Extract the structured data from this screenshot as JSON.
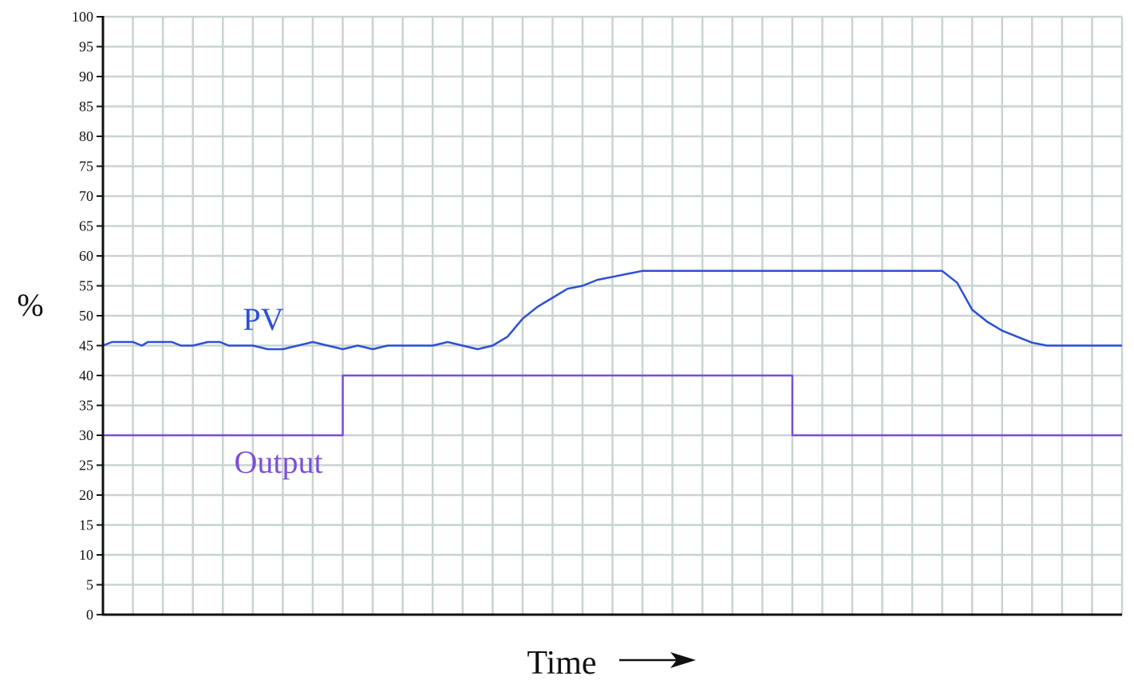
{
  "chart_data": {
    "type": "line",
    "ylabel": "%",
    "xlabel": "Time",
    "ylim": [
      0,
      100
    ],
    "yticks": [
      0,
      5,
      10,
      15,
      20,
      25,
      30,
      35,
      40,
      45,
      50,
      55,
      60,
      65,
      70,
      75,
      80,
      85,
      90,
      95,
      100
    ],
    "xlim": [
      0,
      34
    ],
    "grid": true,
    "x_axis_ticks_labeled": false,
    "series": [
      {
        "name": "PV",
        "color": "#2d4fd6",
        "x": [
          0,
          0.3,
          0.8,
          1.0,
          1.3,
          1.5,
          2.0,
          2.3,
          2.6,
          3.0,
          3.5,
          3.9,
          4.2,
          4.6,
          5.0,
          5.5,
          6.0,
          6.5,
          7.0,
          7.5,
          8.0,
          8.5,
          9.0,
          9.5,
          10.0,
          10.5,
          11.0,
          11.5,
          12.0,
          12.5,
          13.0,
          13.5,
          14.0,
          14.5,
          15.0,
          15.5,
          16.0,
          16.5,
          17.0,
          17.5,
          18.0,
          18.5,
          19.0,
          19.5,
          20.0,
          20.5,
          21.0,
          21.5,
          22.0,
          22.5,
          23.0,
          23.5,
          24.0,
          24.5,
          25.0,
          25.5,
          26.0,
          26.5,
          27.0,
          27.5,
          28.0,
          28.5,
          29.0,
          29.5,
          30.0,
          30.5,
          31.0,
          31.5,
          32.0,
          32.5,
          33.0,
          33.5,
          34.0
        ],
        "values": [
          45,
          45.6,
          45.6,
          45.6,
          45.0,
          45.6,
          45.6,
          45.6,
          45.0,
          45.0,
          45.6,
          45.6,
          45.0,
          45.0,
          45.0,
          44.4,
          44.4,
          45.0,
          45.6,
          45.0,
          44.4,
          45.0,
          44.4,
          45.0,
          45.0,
          45.0,
          45.0,
          45.6,
          45.0,
          44.4,
          45.0,
          46.5,
          49.5,
          51.5,
          53.0,
          54.5,
          55.0,
          56.0,
          56.5,
          57.0,
          57.5,
          57.5,
          57.5,
          57.5,
          57.5,
          57.5,
          57.5,
          57.5,
          57.5,
          57.5,
          57.5,
          57.5,
          57.5,
          57.5,
          57.5,
          57.5,
          57.5,
          57.5,
          57.5,
          57.5,
          57.5,
          55.5,
          51.0,
          49.0,
          47.5,
          46.5,
          45.5,
          45.0,
          45.0,
          45.0,
          45.0,
          45.0,
          45.0
        ]
      },
      {
        "name": "Output",
        "color": "#7b4fd6",
        "x": [
          0,
          8,
          8,
          23,
          23,
          34
        ],
        "values": [
          30,
          30,
          40,
          40,
          30,
          30
        ]
      }
    ]
  }
}
